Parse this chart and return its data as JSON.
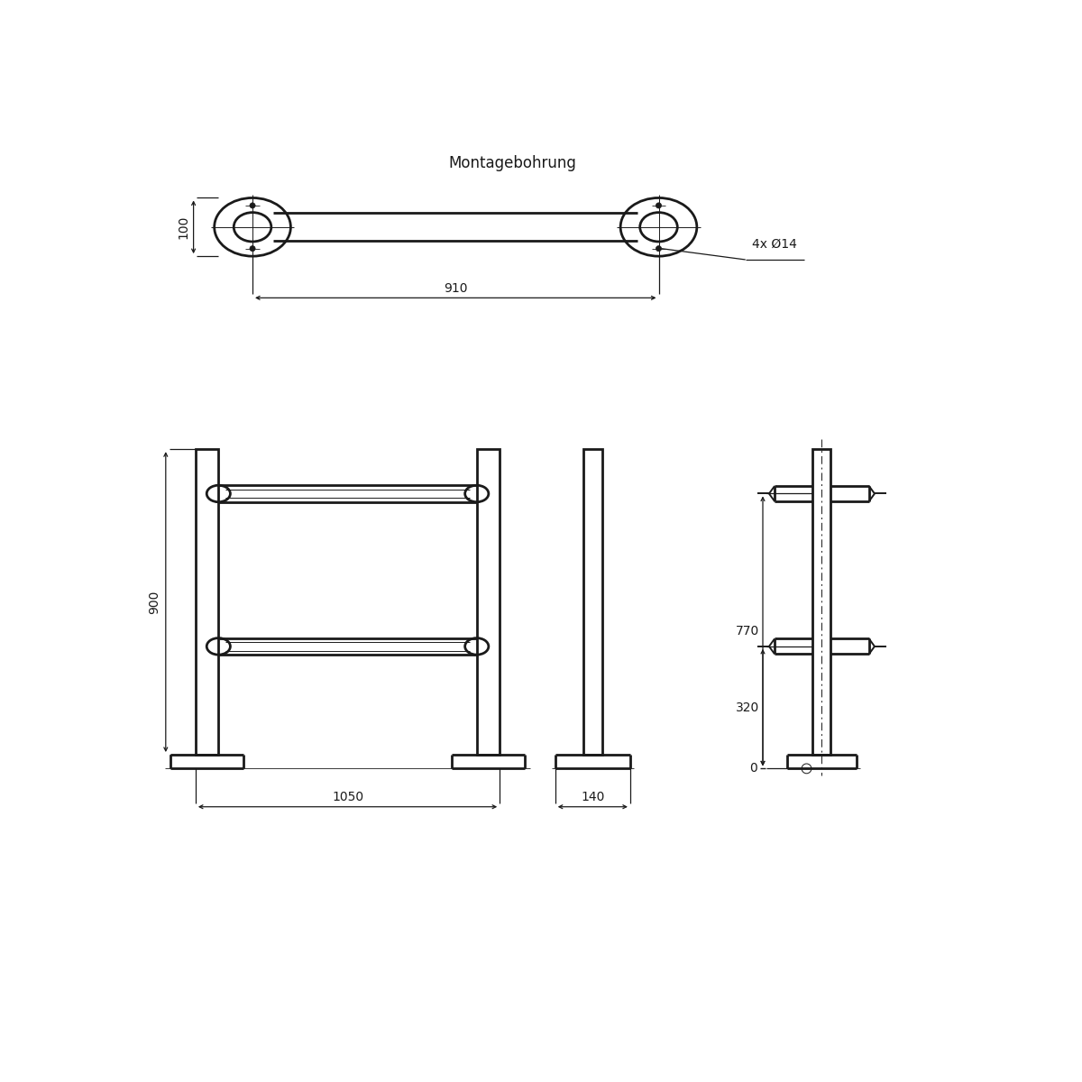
{
  "title_top": "Montagebohrung",
  "bg_color": "#ffffff",
  "line_color": "#1a1a1a",
  "lw_thick": 2.0,
  "lw_thin": 1.0,
  "lw_dim": 0.9,
  "font_size": 10,
  "font_size_title": 12
}
